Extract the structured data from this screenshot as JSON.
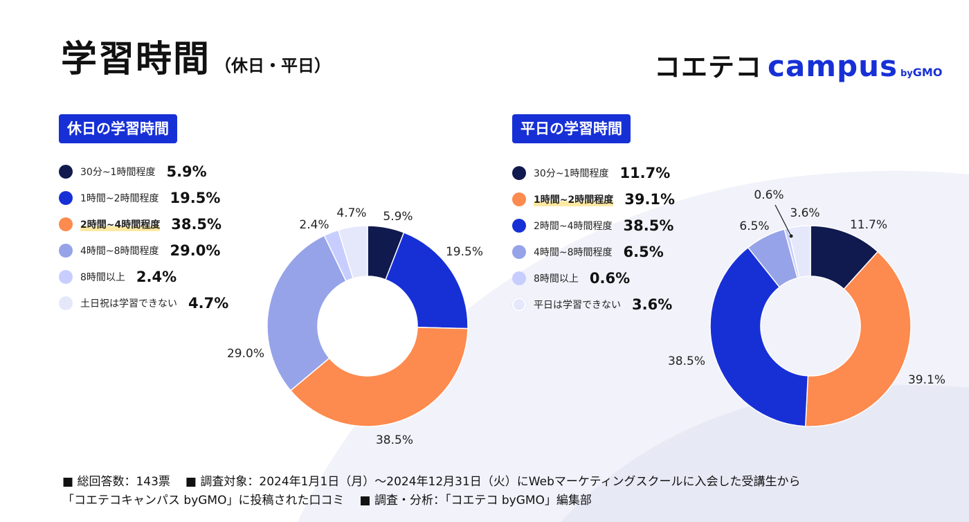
{
  "header": {
    "title": "学習時間",
    "subtitle": "（休日・平日）"
  },
  "logo": {
    "main": "コエテコ",
    "campus": "campus",
    "by": "by",
    "gmo": "GMO"
  },
  "colors": {
    "accent": "#1730d6",
    "highlight": "#fde9a3"
  },
  "chart_data": [
    {
      "type": "pie",
      "donut": true,
      "title": "休日の学習時間",
      "categories": [
        "30分~1時間程度",
        "1時間~2時間程度",
        "2時間~4時間程度",
        "4時間~8時間程度",
        "8時間以上",
        "土日祝は学習できない"
      ],
      "values": [
        5.9,
        19.5,
        38.5,
        29.0,
        2.4,
        4.7
      ],
      "value_labels": [
        "5.9%",
        "19.5%",
        "38.5%",
        "29.0%",
        "2.4%",
        "4.7%"
      ],
      "colors": [
        "#111a4e",
        "#1730d6",
        "#fd8a4e",
        "#96a3e8",
        "#c7ceff",
        "#e5e8fb"
      ],
      "highlight_index": 2
    },
    {
      "type": "pie",
      "donut": true,
      "title": "平日の学習時間",
      "categories": [
        "30分~1時間程度",
        "1時間~2時間程度",
        "2時間~4時間程度",
        "4時間~8時間程度",
        "8時間以上",
        "平日は学習できない"
      ],
      "values": [
        11.7,
        39.1,
        38.5,
        6.5,
        0.6,
        3.6
      ],
      "value_labels": [
        "11.7%",
        "39.1%",
        "38.5%",
        "6.5%",
        "0.6%",
        "3.6%"
      ],
      "colors": [
        "#111a4e",
        "#fd8a4e",
        "#1730d6",
        "#96a3e8",
        "#c7ceff",
        "#e5e8fb"
      ],
      "highlight_index": 1
    }
  ],
  "footer": {
    "line1a": "■ 総回答数：143票",
    "line1b": "■ 調査対象：2024年1月1日（月）～2024年12月31日（火）にWebマーケティングスクールに入会した受講生から",
    "line2a": "「コエテコキャンパス byGMO」に投稿された口コミ",
    "line2b": "■ 調査・分析：「コエテコ byGMO」編集部"
  }
}
